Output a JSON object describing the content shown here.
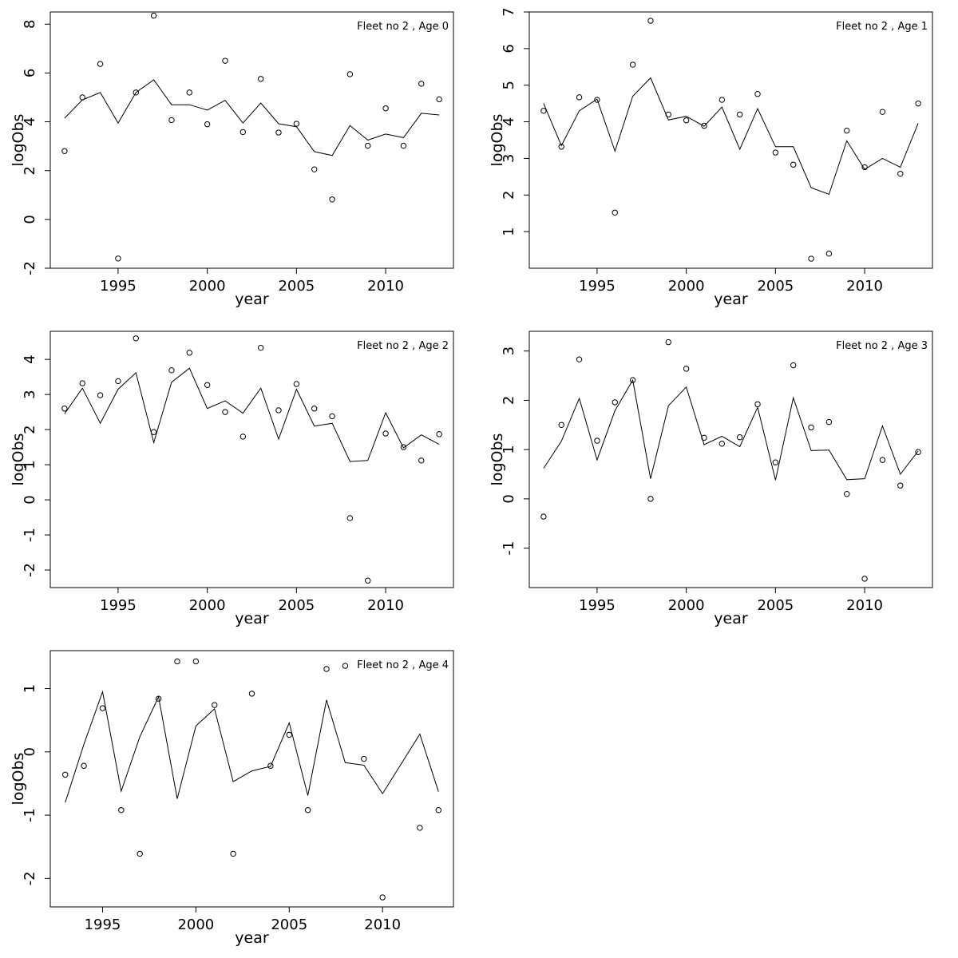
{
  "chart_data": [
    {
      "type": "line",
      "title": "Fleet no 2 , Age 0",
      "xlabel": "year",
      "ylabel": "logObs",
      "xlim": [
        1991.2,
        2013.8
      ],
      "ylim": [
        -2,
        8.5
      ],
      "xticks": [
        1995,
        2000,
        2005,
        2010
      ],
      "yticks": [
        -2,
        0,
        2,
        4,
        6,
        8
      ],
      "ytick_labels": [
        "-2",
        "0",
        "2",
        "4",
        "6",
        "8"
      ],
      "series": [
        {
          "kind": "points",
          "x": [
            1992,
            1993,
            1994,
            1995,
            1996,
            1997,
            1998,
            1999,
            2000,
            2001,
            2002,
            2003,
            2004,
            2005,
            2006,
            2007,
            2008,
            2009,
            2010,
            2011,
            2012,
            2013
          ],
          "values": [
            2.8,
            5.0,
            6.37,
            -1.6,
            5.2,
            8.35,
            4.07,
            5.2,
            3.9,
            6.5,
            3.58,
            5.76,
            3.56,
            3.92,
            2.05,
            0.82,
            5.95,
            3.02,
            4.55,
            3.02,
            5.56,
            4.92
          ]
        },
        {
          "kind": "line",
          "x": [
            1992,
            1993,
            1994,
            1995,
            1996,
            1997,
            1998,
            1999,
            2000,
            2001,
            2002,
            2003,
            2004,
            2005,
            2006,
            2007,
            2008,
            2009,
            2010,
            2011,
            2012,
            2013
          ],
          "values": [
            4.15,
            4.9,
            5.2,
            3.95,
            5.2,
            5.72,
            4.7,
            4.7,
            4.48,
            4.88,
            3.95,
            4.77,
            3.92,
            3.8,
            2.78,
            2.62,
            3.85,
            3.25,
            3.5,
            3.35,
            4.35,
            4.28
          ]
        }
      ]
    },
    {
      "type": "line",
      "title": "Fleet no 2 , Age 1",
      "xlabel": "year",
      "ylabel": "logObs",
      "xlim": [
        1991.2,
        2013.8
      ],
      "ylim": [
        0,
        7
      ],
      "xticks": [
        1995,
        2000,
        2005,
        2010
      ],
      "yticks": [
        1,
        2,
        3,
        4,
        5,
        6,
        7
      ],
      "ytick_labels": [
        "1",
        "2",
        "3",
        "4",
        "5",
        "6",
        "7"
      ],
      "series": [
        {
          "kind": "points",
          "x": [
            1992,
            1993,
            1994,
            1995,
            1996,
            1997,
            1998,
            1999,
            2000,
            2001,
            2002,
            2003,
            2004,
            2005,
            2006,
            2007,
            2008,
            2009,
            2010,
            2011,
            2012,
            2013
          ],
          "values": [
            4.3,
            3.32,
            4.67,
            4.6,
            1.52,
            5.56,
            6.76,
            4.2,
            4.04,
            3.89,
            4.6,
            4.2,
            4.76,
            3.16,
            2.83,
            0.26,
            0.4,
            3.76,
            2.76,
            4.27,
            2.58,
            4.5
          ]
        },
        {
          "kind": "line",
          "x": [
            1992,
            1993,
            1994,
            1995,
            1996,
            1997,
            1998,
            1999,
            2000,
            2001,
            2002,
            2003,
            2004,
            2005,
            2006,
            2007,
            2008,
            2009,
            2010,
            2011,
            2012,
            2013
          ],
          "values": [
            4.5,
            3.35,
            4.3,
            4.62,
            3.2,
            4.7,
            5.2,
            4.05,
            4.15,
            3.88,
            4.4,
            3.25,
            4.36,
            3.32,
            3.32,
            2.2,
            2.02,
            3.48,
            2.7,
            3.0,
            2.76,
            3.96
          ]
        }
      ]
    },
    {
      "type": "line",
      "title": "Fleet no 2 , Age 2",
      "xlabel": "year",
      "ylabel": "logObs",
      "xlim": [
        1991.2,
        2013.8
      ],
      "ylim": [
        -2.5,
        4.8
      ],
      "xticks": [
        1995,
        2000,
        2005,
        2010
      ],
      "yticks": [
        -2,
        -1,
        0,
        1,
        2,
        3,
        4
      ],
      "ytick_labels": [
        "-2",
        "-1",
        "0",
        "1",
        "2",
        "3",
        "4"
      ],
      "series": [
        {
          "kind": "points",
          "x": [
            1992,
            1993,
            1994,
            1995,
            1996,
            1997,
            1998,
            1999,
            2000,
            2001,
            2002,
            2003,
            2004,
            2005,
            2006,
            2007,
            2008,
            2009,
            2010,
            2011,
            2012,
            2013
          ],
          "values": [
            2.6,
            3.32,
            2.98,
            3.38,
            4.6,
            1.93,
            3.69,
            4.19,
            3.27,
            2.5,
            1.8,
            4.33,
            2.55,
            3.3,
            2.6,
            2.38,
            -0.52,
            -2.3,
            1.89,
            1.5,
            1.12,
            1.87
          ]
        },
        {
          "kind": "line",
          "x": [
            1992,
            1993,
            1994,
            1995,
            1996,
            1997,
            1998,
            1999,
            2000,
            2001,
            2002,
            2003,
            2004,
            2005,
            2006,
            2007,
            2008,
            2009,
            2010,
            2011,
            2012,
            2013
          ],
          "values": [
            2.45,
            3.18,
            2.18,
            3.15,
            3.62,
            1.63,
            3.35,
            3.75,
            2.6,
            2.82,
            2.47,
            3.18,
            1.73,
            3.15,
            2.1,
            2.18,
            1.09,
            1.12,
            2.48,
            1.48,
            1.85,
            1.58
          ]
        }
      ]
    },
    {
      "type": "line",
      "title": "Fleet no 2 , Age 3",
      "xlabel": "year",
      "ylabel": "logObs",
      "xlim": [
        1991.2,
        2013.8
      ],
      "ylim": [
        -1.8,
        3.4
      ],
      "xticks": [
        1995,
        2000,
        2005,
        2010
      ],
      "yticks": [
        -1,
        0,
        1,
        2,
        3
      ],
      "ytick_labels": [
        "-1",
        "0",
        "1",
        "2",
        "3"
      ],
      "series": [
        {
          "kind": "points",
          "x": [
            1992,
            1993,
            1994,
            1995,
            1996,
            1997,
            1998,
            1999,
            2000,
            2001,
            2002,
            2003,
            2004,
            2005,
            2006,
            2007,
            2008,
            2009,
            2010,
            2011,
            2012,
            2013
          ],
          "values": [
            -0.36,
            1.5,
            2.83,
            1.18,
            1.96,
            2.41,
            0.0,
            3.18,
            2.64,
            1.24,
            1.12,
            1.25,
            1.92,
            0.74,
            2.71,
            1.45,
            1.56,
            0.1,
            -1.62,
            0.79,
            0.27,
            0.95
          ]
        },
        {
          "kind": "line",
          "x": [
            1992,
            1993,
            1994,
            1995,
            1996,
            1997,
            1998,
            1999,
            2000,
            2001,
            2002,
            2003,
            2004,
            2005,
            2006,
            2007,
            2008,
            2009,
            2010,
            2011,
            2012,
            2013
          ],
          "values": [
            0.62,
            1.17,
            2.04,
            0.79,
            1.79,
            2.41,
            0.41,
            1.89,
            2.27,
            1.1,
            1.27,
            1.06,
            1.86,
            0.38,
            2.05,
            0.98,
            0.99,
            0.39,
            0.41,
            1.48,
            0.5,
            0.97
          ]
        }
      ]
    },
    {
      "type": "line",
      "title": "Fleet no 2 , Age 4",
      "xlabel": "year",
      "ylabel": "logObs",
      "xlim": [
        1992.2,
        2013.8
      ],
      "ylim": [
        -2.45,
        1.6
      ],
      "xticks": [
        1995,
        2000,
        2005,
        2010
      ],
      "yticks": [
        -2,
        -1,
        0,
        1
      ],
      "ytick_labels": [
        "-2",
        "-1",
        "0",
        "1"
      ],
      "series": [
        {
          "kind": "points",
          "x": [
            1993,
            1994,
            1995,
            1996,
            1997,
            1998,
            1999,
            2000,
            2001,
            2002,
            2003,
            2004,
            2005,
            2006,
            2007,
            2008,
            2009,
            2010,
            2012,
            2013
          ],
          "values": [
            -0.36,
            -0.22,
            0.69,
            -0.92,
            -1.61,
            0.84,
            1.43,
            1.43,
            0.74,
            -1.61,
            0.92,
            -0.22,
            0.27,
            -0.92,
            1.31,
            1.36,
            -0.11,
            -2.3,
            -1.2,
            -0.92
          ]
        },
        {
          "kind": "line",
          "x": [
            1993,
            1994,
            1995,
            1996,
            1997,
            1998,
            1999,
            2000,
            2001,
            2002,
            2003,
            2004,
            2005,
            2006,
            2007,
            2008,
            2009,
            2010,
            2012,
            2013
          ],
          "values": [
            -0.8,
            0.12,
            0.95,
            -0.62,
            0.24,
            0.87,
            -0.74,
            0.41,
            0.68,
            -0.47,
            -0.3,
            -0.23,
            0.46,
            -0.69,
            0.82,
            -0.17,
            -0.21,
            -0.66,
            0.28,
            -0.63
          ]
        }
      ]
    }
  ]
}
